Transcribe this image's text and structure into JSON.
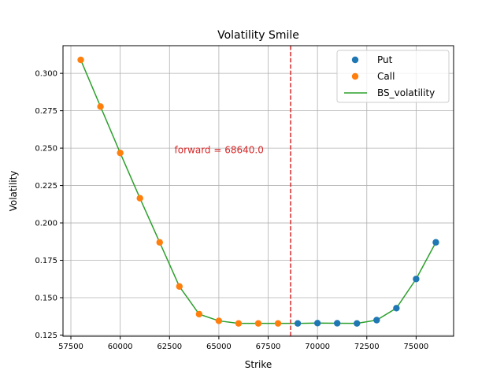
{
  "chart_data": {
    "type": "scatter",
    "title": "Volatility Smile",
    "xlabel": "Strike",
    "ylabel": "Volatility",
    "xlim": [
      57100,
      76900
    ],
    "ylim": [
      0.1242,
      0.3185
    ],
    "x_ticks": [
      57500,
      60000,
      62500,
      65000,
      67500,
      70000,
      72500,
      75000
    ],
    "x_tick_labels": [
      "57500",
      "60000",
      "62500",
      "65000",
      "67500",
      "70000",
      "72500",
      "75000"
    ],
    "y_ticks": [
      0.125,
      0.15,
      0.175,
      0.2,
      0.225,
      0.25,
      0.275,
      0.3
    ],
    "y_tick_labels": [
      "0.125",
      "0.150",
      "0.175",
      "0.200",
      "0.225",
      "0.250",
      "0.275",
      "0.300"
    ],
    "grid": true,
    "legend_position": "top-right",
    "series": [
      {
        "name": "Put",
        "kind": "scatter",
        "color": "#1f77b4",
        "x": [
          69000,
          70000,
          71000,
          72000,
          73000,
          74000,
          75000,
          76000
        ],
        "y": [
          0.1328,
          0.133,
          0.1329,
          0.1328,
          0.135,
          0.143,
          0.1625,
          0.187
        ]
      },
      {
        "name": "Call",
        "kind": "scatter",
        "color": "#ff7f0e",
        "x": [
          58000,
          59000,
          60000,
          61000,
          62000,
          63000,
          64000,
          65000,
          66000,
          67000,
          68000
        ],
        "y": [
          0.309,
          0.2778,
          0.2468,
          0.2165,
          0.187,
          0.1575,
          0.139,
          0.1345,
          0.1328,
          0.1328,
          0.1328
        ]
      },
      {
        "name": "BS_volatility",
        "kind": "line",
        "color": "#2ca02c",
        "x": [
          58000,
          59000,
          60000,
          61000,
          62000,
          63000,
          64000,
          65000,
          66000,
          67000,
          68000,
          69000,
          70000,
          71000,
          72000,
          73000,
          74000,
          75000,
          76000
        ],
        "y": [
          0.309,
          0.2778,
          0.2468,
          0.2165,
          0.187,
          0.1575,
          0.139,
          0.1345,
          0.1328,
          0.1328,
          0.1328,
          0.1328,
          0.133,
          0.1329,
          0.1328,
          0.135,
          0.143,
          0.1625,
          0.187
        ]
      }
    ],
    "forward": {
      "value": 68640,
      "color": "#d62728",
      "label": "forward = 68640.0",
      "label_x": 62750,
      "label_y": 0.2485
    }
  }
}
